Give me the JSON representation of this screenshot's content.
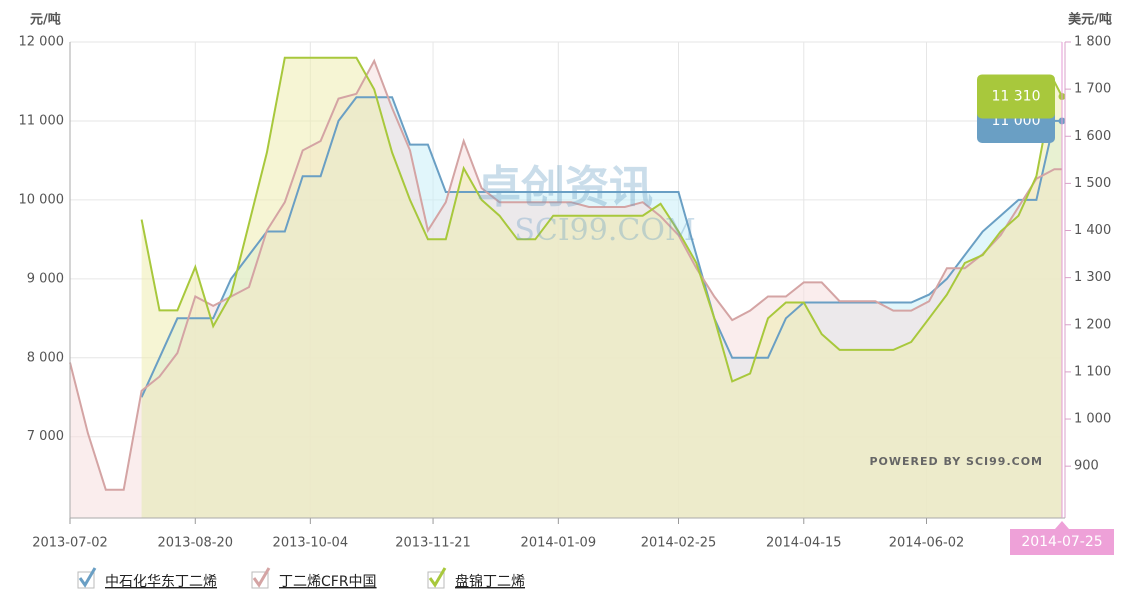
{
  "chart_data": {
    "type": "line",
    "y_unit_label": "元/吨",
    "y2_unit_label": "美元/吨",
    "watermark": "卓创资讯",
    "watermark_sub": "SCI99.COM",
    "credit": "POWERED BY SCI99.COM",
    "x": [
      "2013-07-02",
      "2013-07-09",
      "2013-07-16",
      "2013-07-23",
      "2013-07-30",
      "2013-08-06",
      "2013-08-13",
      "2013-08-20",
      "2013-08-27",
      "2013-09-03",
      "2013-09-10",
      "2013-09-17",
      "2013-09-24",
      "2013-10-01",
      "2013-10-08",
      "2013-10-15",
      "2013-10-22",
      "2013-10-29",
      "2013-11-05",
      "2013-11-12",
      "2013-11-19",
      "2013-11-26",
      "2013-12-03",
      "2013-12-10",
      "2013-12-17",
      "2013-12-24",
      "2013-12-31",
      "2014-01-07",
      "2014-01-14",
      "2014-01-21",
      "2014-01-28",
      "2014-02-04",
      "2014-02-11",
      "2014-02-18",
      "2014-02-25",
      "2014-03-04",
      "2014-03-11",
      "2014-03-18",
      "2014-03-25",
      "2014-04-01",
      "2014-04-08",
      "2014-04-15",
      "2014-04-22",
      "2014-04-29",
      "2014-05-06",
      "2014-05-13",
      "2014-05-20",
      "2014-05-27",
      "2014-06-03",
      "2014-06-10",
      "2014-06-17",
      "2014-06-24",
      "2014-07-01",
      "2014-07-08",
      "2014-07-15",
      "2014-07-22",
      "2014-07-25"
    ],
    "series": [
      {
        "name": "中石化华东丁二烯",
        "color": "#6a9fc4",
        "fill": "#c9eef8",
        "values": [
          null,
          null,
          null,
          null,
          7500,
          8000,
          8500,
          8500,
          8500,
          9000,
          9300,
          9600,
          9600,
          10300,
          10300,
          11000,
          11300,
          11300,
          11300,
          10700,
          10700,
          10100,
          10100,
          10100,
          10100,
          10100,
          10100,
          10100,
          10100,
          10100,
          10100,
          10100,
          10100,
          10100,
          10100,
          9300,
          8500,
          8000,
          8000,
          8000,
          8500,
          8700,
          8700,
          8700,
          8700,
          8700,
          8700,
          8700,
          8800,
          9000,
          9300,
          9600,
          9800,
          10000,
          10000,
          11000,
          11000
        ],
        "value_labels": [
          null,
          null,
          null,
          null,
          null,
          null,
          null,
          null,
          null,
          null,
          null,
          null,
          null,
          null,
          null,
          null,
          null,
          null,
          null,
          null,
          null,
          null,
          null,
          null,
          null,
          null,
          null,
          null,
          null,
          null,
          null,
          null,
          null,
          null,
          null,
          null,
          null,
          null,
          null,
          null,
          null,
          null,
          null,
          null,
          null,
          null,
          null,
          null,
          null,
          null,
          null,
          null,
          null,
          null,
          null,
          null,
          "11 000"
        ]
      },
      {
        "name": "丁二烯CFR中国",
        "color": "#d4a4a4",
        "fill": "#f6dede",
        "axis": "y2",
        "values": [
          1120,
          970,
          850,
          850,
          1060,
          1090,
          1140,
          1260,
          1240,
          1260,
          1280,
          1400,
          1460,
          1570,
          1590,
          1680,
          1690,
          1760,
          1660,
          1570,
          1400,
          1460,
          1590,
          1490,
          1460,
          1460,
          1460,
          1460,
          1460,
          1450,
          1450,
          1450,
          1460,
          1430,
          1390,
          1320,
          1260,
          1210,
          1230,
          1260,
          1260,
          1290,
          1290,
          1250,
          1250,
          1250,
          1230,
          1230,
          1250,
          1320,
          1320,
          1350,
          1390,
          1450,
          1510,
          1530,
          1530
        ]
      },
      {
        "name": "盘锦丁二烯",
        "color": "#a8c83c",
        "fill": "#eeedb0",
        "values": [
          null,
          null,
          null,
          null,
          9750,
          8600,
          8600,
          9150,
          8400,
          8800,
          9700,
          10600,
          11800,
          11800,
          11800,
          11800,
          11800,
          11400,
          10600,
          10000,
          9500,
          9500,
          10400,
          10000,
          9800,
          9500,
          9500,
          9800,
          9800,
          9800,
          9800,
          9800,
          9800,
          9950,
          9600,
          9200,
          8500,
          7700,
          7800,
          8500,
          8700,
          8700,
          8300,
          8100,
          8100,
          8100,
          8100,
          8200,
          8500,
          8800,
          9200,
          9300,
          9600,
          9800,
          10300,
          11500,
          11310
        ],
        "value_labels": [
          null,
          null,
          null,
          null,
          null,
          null,
          null,
          null,
          null,
          null,
          null,
          null,
          null,
          null,
          null,
          null,
          null,
          null,
          null,
          null,
          null,
          null,
          null,
          null,
          null,
          null,
          null,
          null,
          null,
          null,
          null,
          null,
          null,
          null,
          null,
          null,
          null,
          null,
          null,
          null,
          null,
          null,
          null,
          null,
          null,
          null,
          null,
          null,
          null,
          null,
          null,
          null,
          null,
          null,
          null,
          null,
          "11 310"
        ]
      }
    ],
    "xticks": [
      "2013-07-02",
      "2013-08-20",
      "2013-10-04",
      "2013-11-21",
      "2014-01-09",
      "2014-02-25",
      "2014-04-15",
      "2014-06-02"
    ],
    "crosshair_x": "2014-07-25",
    "ylim": [
      5970,
      12000
    ],
    "yticks": [
      {
        "value": 7000,
        "label": "7 000"
      },
      {
        "value": 8000,
        "label": "8 000"
      },
      {
        "value": 9000,
        "label": "9 000"
      },
      {
        "value": 10000,
        "label": "10 000"
      },
      {
        "value": 11000,
        "label": "11 000"
      },
      {
        "value": 12000,
        "label": "12 000"
      }
    ],
    "y2lim": [
      790,
      1800
    ],
    "y2ticks": [
      {
        "value": 900,
        "label": "900"
      },
      {
        "value": 1000,
        "label": "1 000"
      },
      {
        "value": 1100,
        "label": "1 100"
      },
      {
        "value": 1200,
        "label": "1 200"
      },
      {
        "value": 1300,
        "label": "1 300"
      },
      {
        "value": 1400,
        "label": "1 400"
      },
      {
        "value": 1500,
        "label": "1 500"
      },
      {
        "value": 1600,
        "label": "1 600"
      },
      {
        "value": 1700,
        "label": "1 700"
      },
      {
        "value": 1800,
        "label": "1 800"
      }
    ],
    "grid": true
  }
}
